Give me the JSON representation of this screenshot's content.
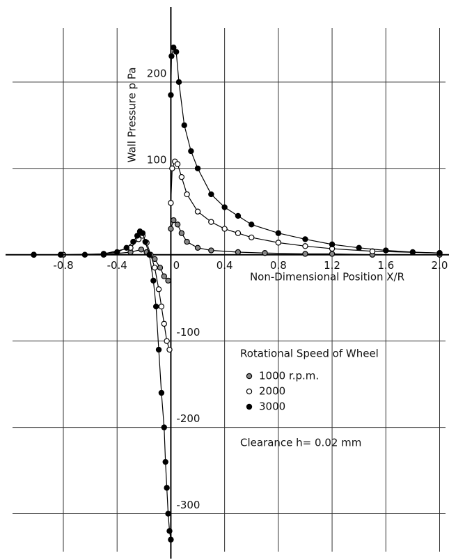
{
  "chart_data": {
    "type": "line",
    "xlabel": "Non-Dimensional Position X/R",
    "ylabel": "Wall Pressure  p   Pa",
    "legend_title": "Rotational Speed of Wheel",
    "annotation": "Clearance  h= 0.02 mm",
    "xlim": [
      -1.23,
      2.07
    ],
    "ylim": [
      -352,
      287
    ],
    "xticks": [
      -0.8,
      -0.4,
      0,
      0.4,
      0.8,
      1.2,
      1.6,
      {
        "value": 2,
        "label": "2.0"
      }
    ],
    "yticks": [
      -300,
      -200,
      -100,
      100,
      200
    ],
    "grid": true,
    "series": [
      {
        "name": "1000 r.p.m.",
        "color": "#000000",
        "marker": "dotted",
        "x": [
          -1.02,
          -0.8,
          -0.5,
          -0.3,
          -0.22,
          -0.18,
          -0.12,
          -0.08,
          -0.05,
          -0.02,
          null,
          0,
          0.02,
          0.05,
          0.08,
          0.12,
          0.2,
          0.3,
          0.5,
          0.7,
          1.0,
          1.2,
          1.5,
          2.0
        ],
        "values": [
          0,
          0,
          0,
          3,
          6,
          3,
          -5,
          -15,
          -25,
          -30,
          null,
          30,
          40,
          35,
          25,
          15,
          8,
          5,
          3,
          2,
          1,
          1,
          0,
          0
        ]
      },
      {
        "name": "2000",
        "color": "#000000",
        "marker": "open",
        "x": [
          -1.02,
          -0.82,
          -0.5,
          -0.3,
          -0.24,
          -0.21,
          -0.18,
          -0.15,
          -0.12,
          -0.09,
          -0.07,
          -0.05,
          -0.03,
          -0.01,
          null,
          0,
          0.01,
          0.03,
          0.05,
          0.08,
          0.12,
          0.2,
          0.3,
          0.4,
          0.5,
          0.6,
          0.8,
          1.0,
          1.2,
          1.5,
          2.0
        ],
        "values": [
          0,
          0,
          1,
          8,
          18,
          22,
          14,
          0,
          -15,
          -40,
          -60,
          -80,
          -100,
          -110,
          null,
          60,
          100,
          108,
          105,
          90,
          70,
          50,
          38,
          30,
          25,
          20,
          14,
          10,
          7,
          4,
          2
        ]
      },
      {
        "name": "3000",
        "color": "#000000",
        "marker": "filled",
        "x": [
          -1.02,
          -0.82,
          -0.64,
          -0.5,
          -0.4,
          -0.33,
          -0.28,
          -0.25,
          -0.23,
          -0.21,
          -0.19,
          -0.16,
          -0.13,
          -0.11,
          -0.09,
          -0.07,
          -0.05,
          -0.04,
          -0.03,
          -0.02,
          -0.01,
          0,
          null,
          0,
          0.005,
          0.02,
          0.04,
          0.06,
          0.1,
          0.15,
          0.2,
          0.3,
          0.4,
          0.5,
          0.6,
          0.8,
          1.0,
          1.2,
          1.4,
          1.6,
          1.8,
          2.0
        ],
        "values": [
          0,
          0,
          0,
          1,
          3,
          8,
          15,
          22,
          27,
          25,
          15,
          0,
          -30,
          -60,
          -110,
          -160,
          -200,
          -240,
          -270,
          -300,
          -320,
          -330,
          null,
          185,
          230,
          240,
          235,
          200,
          150,
          120,
          100,
          70,
          55,
          45,
          35,
          25,
          18,
          12,
          8,
          5,
          3,
          2
        ]
      }
    ]
  }
}
